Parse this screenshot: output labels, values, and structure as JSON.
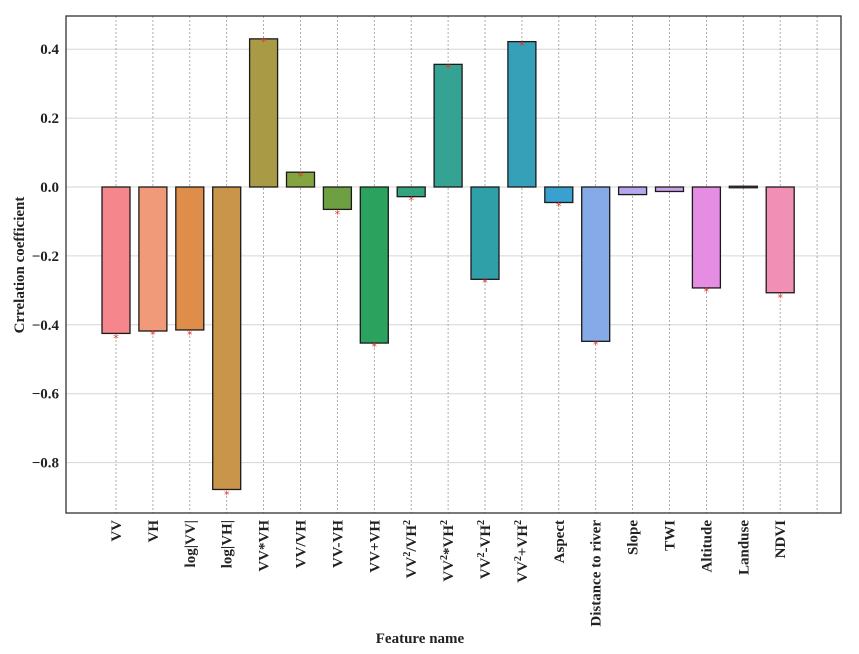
{
  "chart_data": {
    "type": "bar",
    "title": "",
    "xlabel": "Feature name",
    "ylabel": "Crrelation coefficient",
    "ylim": [
      -0.955,
      0.5
    ],
    "yticks": [
      0.4,
      0.2,
      0.0,
      -0.2,
      -0.4,
      -0.6,
      -0.8
    ],
    "ytick_labels": [
      "0.4",
      "0.2",
      "0.0",
      "−0.2",
      "−0.4",
      "−0.6",
      "−0.8"
    ],
    "grid": true,
    "legend": "none",
    "categories": [
      {
        "base": "VV"
      },
      {
        "base": "VH"
      },
      {
        "base": "log|VV|"
      },
      {
        "base": "log|VH|"
      },
      {
        "base": "VV*VH"
      },
      {
        "base": "VV/VH"
      },
      {
        "base": "VV-VH"
      },
      {
        "base": "VV+VH"
      },
      {
        "base": "VV",
        "sup1": "2",
        "mid": "/VH",
        "sup2": "2"
      },
      {
        "base": "VV",
        "sup1": "2",
        "mid": "*VH",
        "sup2": "2"
      },
      {
        "base": "VV",
        "sup1": "2",
        "mid": "-VH",
        "sup2": "2"
      },
      {
        "base": "VV",
        "sup1": "2",
        "mid": "+VH",
        "sup2": "2"
      },
      {
        "base": "Aspect"
      },
      {
        "base": "Distance to river"
      },
      {
        "base": "Slope"
      },
      {
        "base": "TWI"
      },
      {
        "base": "Altitude"
      },
      {
        "base": "Landuse"
      },
      {
        "base": "NDVI"
      },
      {
        "base": ""
      }
    ],
    "values": [
      -0.425,
      -0.418,
      -0.415,
      -0.878,
      0.43,
      0.043,
      -0.065,
      -0.453,
      -0.028,
      0.356,
      -0.268,
      0.422,
      -0.045,
      -0.448,
      -0.022,
      -0.013,
      -0.293,
      -0.003,
      -0.307,
      null
    ],
    "markers": [
      -0.435,
      -0.425,
      -0.425,
      -0.89,
      0.425,
      0.035,
      -0.075,
      -0.46,
      -0.035,
      0.35,
      -0.275,
      0.415,
      -0.052,
      -0.455,
      null,
      null,
      -0.3,
      null,
      -0.318,
      null
    ],
    "colors": [
      "#f4868c",
      "#f19a7a",
      "#df8d4a",
      "#c9954a",
      "#a99b45",
      "#84a43f",
      "#6ea043",
      "#2ba35f",
      "#33a47e",
      "#35a393",
      "#30a0a8",
      "#35a0b8",
      "#3aa0d0",
      "#86aae8",
      "#b6a6ec",
      "#caa2ec",
      "#e48de2",
      "#ef8ccc",
      "#f28fb4",
      "#ffffff"
    ],
    "marker_color": "#e8302c"
  }
}
